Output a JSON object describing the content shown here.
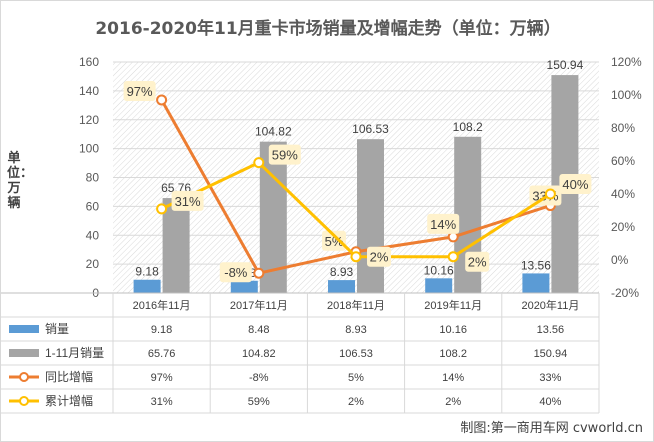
{
  "title": "2016-2020年11月重卡市场销量及增幅走势（单位：万辆）",
  "y_axis_title": "单位：万辆",
  "credit": "制图:第一商用车网 cvworld.cn",
  "colors": {
    "sales": "#5b9bd5",
    "cumulative": "#a5a5a5",
    "yoy": "#ed7d31",
    "cum_growth": "#ffc000",
    "label_bg": "#fff2cc",
    "hatch": "#d9d9d9"
  },
  "chart_data": {
    "type": "bar",
    "categories": [
      "2016年11月",
      "2017年11月",
      "2018年11月",
      "2019年11月",
      "2020年11月"
    ],
    "series": [
      {
        "name": "销量",
        "kind": "bar",
        "axis": "left",
        "values": [
          9.18,
          8.48,
          8.93,
          10.16,
          13.56
        ],
        "labels": [
          "9.18",
          "8.48",
          "8.93",
          "10.16",
          "13.56"
        ]
      },
      {
        "name": "1-11月销量",
        "kind": "bar",
        "axis": "left",
        "values": [
          65.76,
          104.82,
          106.53,
          108.2,
          150.94
        ],
        "labels": [
          "65.76",
          "104.82",
          "106.53",
          "108.2",
          "150.94"
        ]
      },
      {
        "name": "同比增幅",
        "kind": "line",
        "axis": "right",
        "values": [
          97,
          -8,
          5,
          14,
          33
        ],
        "labels": [
          "97%",
          "-8%",
          "5%",
          "14%",
          "33%"
        ]
      },
      {
        "name": "累计增幅",
        "kind": "line",
        "axis": "right",
        "values": [
          31,
          59,
          2,
          2,
          40
        ],
        "labels": [
          "31%",
          "59%",
          "2%",
          "2%",
          "40%"
        ]
      }
    ],
    "y_left": {
      "min": 0,
      "max": 160,
      "step": 20,
      "ticks": [
        "0",
        "20",
        "40",
        "60",
        "80",
        "100",
        "120",
        "140",
        "160"
      ]
    },
    "y_right": {
      "min": -20,
      "max": 120,
      "step": 20,
      "ticks": [
        "-20%",
        "0%",
        "20%",
        "40%",
        "60%",
        "80%",
        "100%",
        "120%"
      ]
    },
    "data_table": true,
    "background": "diagonal hatch"
  }
}
